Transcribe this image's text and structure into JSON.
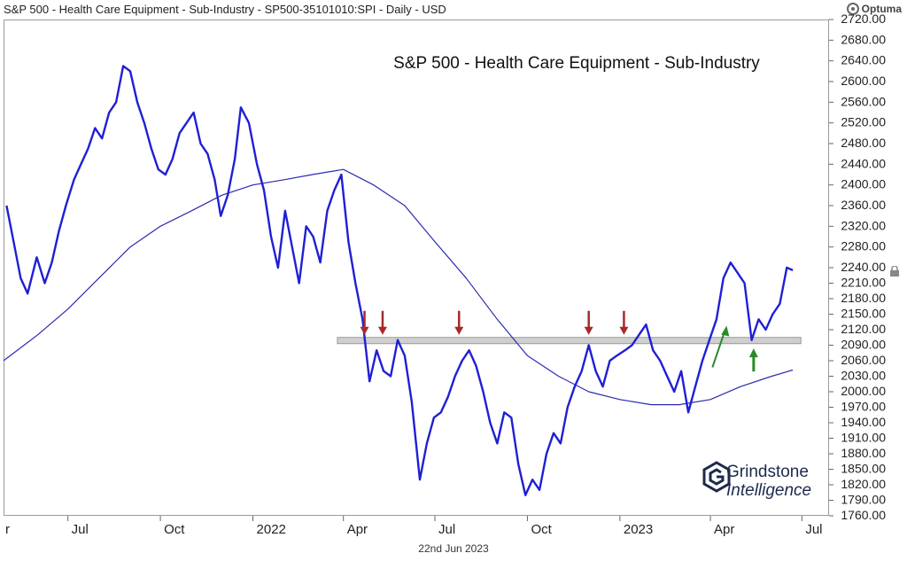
{
  "header": {
    "title": "S&P 500 - Health Care Equipment - Sub-Industry - SP500-35101010:SPI - Daily - USD",
    "brand": "Optuma"
  },
  "footer": {
    "date": "22nd Jun 2023"
  },
  "watermark": {
    "line1": "Grindstone",
    "line2": "Intelligence",
    "icon": "grindstone-logo-icon"
  },
  "colors": {
    "price": "#1f1fd6",
    "ma": "#2b2bb0",
    "band": "#cfcfcf",
    "down_arrow": "#a52a2a",
    "up_arrow": "#2a8a2a"
  },
  "chart_data": {
    "type": "line",
    "title": "S&P 500 - Health Care Equipment - Sub-Industry",
    "xlabel": "",
    "ylabel": "",
    "y_axis_side": "right",
    "ylim": [
      1760,
      2720
    ],
    "x_range": [
      "2021-04-28",
      "2023-07-28"
    ],
    "y_ticks": [
      1760,
      1790,
      1820,
      1850,
      1880,
      1910,
      1940,
      1970,
      2000,
      2030,
      2060,
      2090,
      2120,
      2150,
      2180,
      2210,
      2240,
      2280,
      2320,
      2360,
      2400,
      2440,
      2480,
      2520,
      2560,
      2600,
      2640,
      2680,
      2720
    ],
    "y_tick_labels": [
      "1760.00",
      "1790.00",
      "1820.00",
      "1850.00",
      "1880.00",
      "1910.00",
      "1940.00",
      "1970.00",
      "2000.00",
      "2030.00",
      "2060.00",
      "2090.00",
      "2120.00",
      "2150.00",
      "2180.00",
      "2210.00",
      "2240.00",
      "2280.00",
      "2320.00",
      "2360.00",
      "2400.00",
      "2440.00",
      "2480.00",
      "2520.00",
      "2560.00",
      "2600.00",
      "2640.00",
      "2680.00",
      "2720.00"
    ],
    "x_ticks": [
      {
        "label": "r",
        "date": "2021-04-28"
      },
      {
        "label": "Jul",
        "date": "2021-07-01"
      },
      {
        "label": "Oct",
        "date": "2021-10-01"
      },
      {
        "label": "2022",
        "date": "2022-01-01"
      },
      {
        "label": "Apr",
        "date": "2022-04-01"
      },
      {
        "label": "Jul",
        "date": "2022-07-01"
      },
      {
        "label": "Oct",
        "date": "2022-10-01"
      },
      {
        "label": "2023",
        "date": "2023-01-01"
      },
      {
        "label": "Apr",
        "date": "2023-04-01"
      },
      {
        "label": "Jul",
        "date": "2023-07-01"
      }
    ],
    "series": [
      {
        "name": "",
        "role": "price",
        "points": [
          [
            "2021-05-01",
            2360
          ],
          [
            "2021-05-08",
            2290
          ],
          [
            "2021-05-15",
            2220
          ],
          [
            "2021-05-22",
            2190
          ],
          [
            "2021-05-31",
            2260
          ],
          [
            "2021-06-08",
            2210
          ],
          [
            "2021-06-15",
            2250
          ],
          [
            "2021-06-22",
            2310
          ],
          [
            "2021-06-29",
            2360
          ],
          [
            "2021-07-07",
            2410
          ],
          [
            "2021-07-14",
            2440
          ],
          [
            "2021-07-21",
            2470
          ],
          [
            "2021-07-28",
            2510
          ],
          [
            "2021-08-04",
            2490
          ],
          [
            "2021-08-11",
            2540
          ],
          [
            "2021-08-18",
            2560
          ],
          [
            "2021-08-25",
            2630
          ],
          [
            "2021-09-01",
            2620
          ],
          [
            "2021-09-08",
            2560
          ],
          [
            "2021-09-15",
            2520
          ],
          [
            "2021-09-22",
            2470
          ],
          [
            "2021-09-29",
            2430
          ],
          [
            "2021-10-06",
            2420
          ],
          [
            "2021-10-13",
            2450
          ],
          [
            "2021-10-20",
            2500
          ],
          [
            "2021-10-27",
            2520
          ],
          [
            "2021-11-03",
            2540
          ],
          [
            "2021-11-10",
            2480
          ],
          [
            "2021-11-17",
            2460
          ],
          [
            "2021-11-24",
            2410
          ],
          [
            "2021-11-30",
            2340
          ],
          [
            "2021-12-07",
            2380
          ],
          [
            "2021-12-14",
            2450
          ],
          [
            "2021-12-20",
            2550
          ],
          [
            "2021-12-28",
            2520
          ],
          [
            "2022-01-05",
            2440
          ],
          [
            "2022-01-12",
            2390
          ],
          [
            "2022-01-19",
            2300
          ],
          [
            "2022-01-26",
            2240
          ],
          [
            "2022-02-02",
            2350
          ],
          [
            "2022-02-09",
            2280
          ],
          [
            "2022-02-16",
            2210
          ],
          [
            "2022-02-23",
            2320
          ],
          [
            "2022-03-02",
            2300
          ],
          [
            "2022-03-09",
            2250
          ],
          [
            "2022-03-16",
            2350
          ],
          [
            "2022-03-23",
            2390
          ],
          [
            "2022-03-30",
            2420
          ],
          [
            "2022-04-06",
            2290
          ],
          [
            "2022-04-13",
            2210
          ],
          [
            "2022-04-20",
            2140
          ],
          [
            "2022-04-27",
            2020
          ],
          [
            "2022-05-04",
            2080
          ],
          [
            "2022-05-11",
            2040
          ],
          [
            "2022-05-18",
            2030
          ],
          [
            "2022-05-25",
            2100
          ],
          [
            "2022-06-01",
            2070
          ],
          [
            "2022-06-08",
            1980
          ],
          [
            "2022-06-16",
            1830
          ],
          [
            "2022-06-23",
            1900
          ],
          [
            "2022-06-30",
            1950
          ],
          [
            "2022-07-07",
            1960
          ],
          [
            "2022-07-14",
            1990
          ],
          [
            "2022-07-21",
            2030
          ],
          [
            "2022-07-28",
            2060
          ],
          [
            "2022-08-04",
            2080
          ],
          [
            "2022-08-11",
            2050
          ],
          [
            "2022-08-18",
            2000
          ],
          [
            "2022-08-25",
            1940
          ],
          [
            "2022-09-01",
            1900
          ],
          [
            "2022-09-08",
            1960
          ],
          [
            "2022-09-15",
            1950
          ],
          [
            "2022-09-22",
            1860
          ],
          [
            "2022-09-29",
            1800
          ],
          [
            "2022-10-06",
            1830
          ],
          [
            "2022-10-13",
            1810
          ],
          [
            "2022-10-20",
            1880
          ],
          [
            "2022-10-27",
            1920
          ],
          [
            "2022-11-03",
            1900
          ],
          [
            "2022-11-10",
            1970
          ],
          [
            "2022-11-17",
            2010
          ],
          [
            "2022-11-24",
            2040
          ],
          [
            "2022-12-01",
            2090
          ],
          [
            "2022-12-08",
            2040
          ],
          [
            "2022-12-15",
            2010
          ],
          [
            "2022-12-22",
            2060
          ],
          [
            "2022-12-29",
            2070
          ],
          [
            "2023-01-06",
            2080
          ],
          [
            "2023-01-13",
            2090
          ],
          [
            "2023-01-20",
            2110
          ],
          [
            "2023-01-27",
            2130
          ],
          [
            "2023-02-03",
            2080
          ],
          [
            "2023-02-10",
            2060
          ],
          [
            "2023-02-17",
            2030
          ],
          [
            "2023-02-24",
            2000
          ],
          [
            "2023-03-03",
            2040
          ],
          [
            "2023-03-10",
            1960
          ],
          [
            "2023-03-17",
            2010
          ],
          [
            "2023-03-24",
            2060
          ],
          [
            "2023-03-31",
            2100
          ],
          [
            "2023-04-07",
            2140
          ],
          [
            "2023-04-14",
            2220
          ],
          [
            "2023-04-21",
            2250
          ],
          [
            "2023-04-28",
            2230
          ],
          [
            "2023-05-05",
            2210
          ],
          [
            "2023-05-12",
            2100
          ],
          [
            "2023-05-19",
            2140
          ],
          [
            "2023-05-26",
            2120
          ],
          [
            "2023-06-02",
            2150
          ],
          [
            "2023-06-09",
            2170
          ],
          [
            "2023-06-16",
            2240
          ],
          [
            "2023-06-22",
            2235
          ]
        ]
      },
      {
        "name": "",
        "role": "moving-average",
        "points": [
          [
            "2021-04-28",
            2060
          ],
          [
            "2021-06-01",
            2110
          ],
          [
            "2021-07-01",
            2160
          ],
          [
            "2021-08-01",
            2220
          ],
          [
            "2021-09-01",
            2280
          ],
          [
            "2021-10-01",
            2320
          ],
          [
            "2021-11-01",
            2350
          ],
          [
            "2021-12-01",
            2380
          ],
          [
            "2022-01-01",
            2400
          ],
          [
            "2022-02-01",
            2410
          ],
          [
            "2022-03-01",
            2420
          ],
          [
            "2022-04-01",
            2430
          ],
          [
            "2022-05-01",
            2400
          ],
          [
            "2022-06-01",
            2360
          ],
          [
            "2022-07-01",
            2290
          ],
          [
            "2022-08-01",
            2220
          ],
          [
            "2022-09-01",
            2140
          ],
          [
            "2022-10-01",
            2070
          ],
          [
            "2022-11-01",
            2030
          ],
          [
            "2022-12-01",
            2000
          ],
          [
            "2023-01-01",
            1985
          ],
          [
            "2023-02-01",
            1975
          ],
          [
            "2023-03-01",
            1975
          ],
          [
            "2023-04-01",
            1985
          ],
          [
            "2023-05-01",
            2010
          ],
          [
            "2023-06-01",
            2030
          ],
          [
            "2023-06-22",
            2042
          ]
        ]
      }
    ],
    "band": {
      "y_low": 2093,
      "y_high": 2105,
      "x_start": "2022-03-26",
      "x_end": "2023-06-30"
    },
    "annotations": [
      {
        "type": "down-arrow",
        "date": "2022-04-22",
        "y": 2105
      },
      {
        "type": "down-arrow",
        "date": "2022-05-10",
        "y": 2105
      },
      {
        "type": "down-arrow",
        "date": "2022-07-25",
        "y": 2105
      },
      {
        "type": "down-arrow",
        "date": "2022-12-01",
        "y": 2105
      },
      {
        "type": "down-arrow",
        "date": "2023-01-05",
        "y": 2105
      },
      {
        "type": "up-arrow-diagonal",
        "date": "2023-04-03",
        "y": 2090
      },
      {
        "type": "up-arrow",
        "date": "2023-05-14",
        "y": 2070
      }
    ]
  }
}
